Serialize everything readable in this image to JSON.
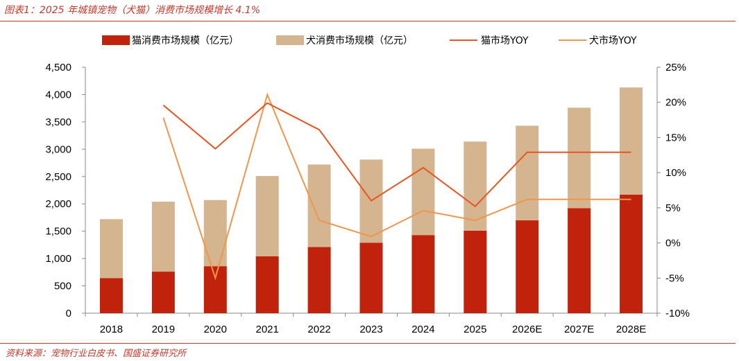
{
  "header": {
    "title": "图表1：2025 年城镇宠物（犬猫）消费市场规模增长 4.1%"
  },
  "footer": {
    "source": "资料来源：宠物行业白皮书、国盛证券研究所"
  },
  "colors": {
    "accent": "#c0392b",
    "cat_bar": "#c0220c",
    "dog_bar": "#d4b58f",
    "cat_line": "#e8541e",
    "dog_line": "#f0954a"
  },
  "chart_data": {
    "type": "bar",
    "stacked": true,
    "categories": [
      "2018",
      "2019",
      "2020",
      "2021",
      "2022",
      "2023",
      "2024",
      "2025",
      "2026E",
      "2027E",
      "2028E"
    ],
    "series": [
      {
        "name": "猫消费市场规模（亿元）",
        "type": "bar",
        "axis": "left",
        "values": [
          640,
          760,
          860,
          1040,
          1210,
          1290,
          1430,
          1510,
          1700,
          1920,
          2170
        ]
      },
      {
        "name": "犬消费市场规模（亿元）",
        "type": "bar",
        "axis": "left",
        "values": [
          1080,
          1280,
          1210,
          1470,
          1510,
          1520,
          1580,
          1630,
          1730,
          1840,
          1960
        ]
      },
      {
        "name": "猫市场YOY",
        "type": "line",
        "axis": "right",
        "values": [
          null,
          19.6,
          13.4,
          19.9,
          16.1,
          6.0,
          10.7,
          5.2,
          12.9,
          12.9,
          12.9
        ]
      },
      {
        "name": "犬市场YOY",
        "type": "line",
        "axis": "right",
        "values": [
          null,
          17.8,
          -5.0,
          21.1,
          3.2,
          0.9,
          4.6,
          3.2,
          6.2,
          6.2,
          6.2
        ]
      }
    ],
    "left_axis": {
      "min": 0,
      "max": 4500,
      "step": 500,
      "tick_labels": [
        "0",
        "500",
        "1,000",
        "1,500",
        "2,000",
        "2,500",
        "3,000",
        "3,500",
        "4,000",
        "4,500"
      ]
    },
    "right_axis": {
      "min": -10,
      "max": 25,
      "step": 5,
      "tick_labels": [
        "-10%",
        "-5%",
        "0%",
        "5%",
        "10%",
        "15%",
        "20%",
        "25%"
      ]
    },
    "legend_position": "top",
    "grid": false
  }
}
